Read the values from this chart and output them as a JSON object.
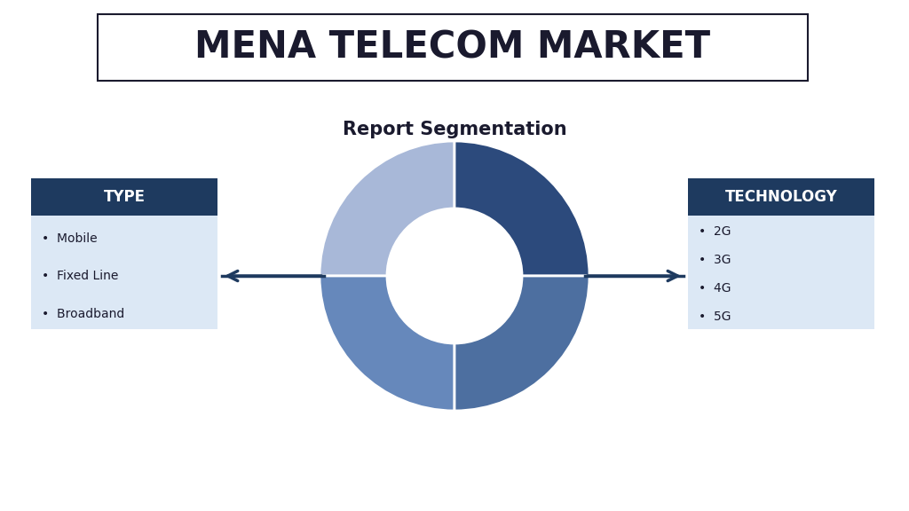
{
  "title": "MENA TELECOM MARKET",
  "subtitle": "Report Segmentation",
  "bg_color": "#ffffff",
  "title_box_edge": "#1a1a2e",
  "title_color": "#1a1a2e",
  "subtitle_color": "#1a1a2e",
  "donut_colors_quadrants": {
    "top_left": "#a8b8d8",
    "top_right": "#2c4a7c",
    "bottom_left": "#6688bb",
    "bottom_right": "#4d6fa0"
  },
  "donut_gap_color": "#ffffff",
  "left_box_header": "TYPE",
  "left_box_header_bg": "#1e3a5f",
  "left_box_body_bg": "#dce8f5",
  "left_box_items": [
    "Mobile",
    "Fixed Line",
    "Broadband"
  ],
  "right_box_header": "TECHNOLOGY",
  "right_box_header_bg": "#1e3a5f",
  "right_box_body_bg": "#dce8f5",
  "right_box_items": [
    "2G",
    "3G",
    "4G",
    "5G"
  ],
  "arrow_color": "#1e3a5f",
  "header_text_color": "#ffffff",
  "body_text_color": "#1a1a2e",
  "title_fontsize": 30,
  "subtitle_fontsize": 15,
  "header_fontsize": 12,
  "body_fontsize": 10
}
